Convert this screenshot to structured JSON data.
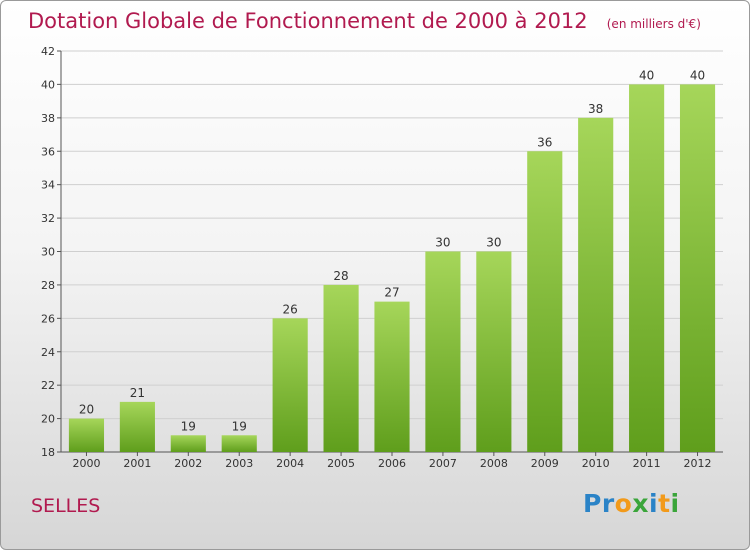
{
  "header": {
    "title": "Dotation Globale de Fonctionnement de 2000 à 2012",
    "subtitle": "(en milliers d'€)"
  },
  "town": "SELLES",
  "logo": {
    "text": "Proxiti",
    "letters": [
      {
        "ch": "P",
        "color": "#2a83c7"
      },
      {
        "ch": "r",
        "color": "#2a83c7"
      },
      {
        "ch": "o",
        "color": "#f29a1a"
      },
      {
        "ch": "x",
        "color": "#3aa53a"
      },
      {
        "ch": "i",
        "color": "#2a83c7"
      },
      {
        "ch": "t",
        "color": "#f29a1a"
      },
      {
        "ch": "i",
        "color": "#3aa53a"
      }
    ]
  },
  "colors": {
    "title": "#b11a4f",
    "bar_top": "#a6d65a",
    "bar_bottom": "#5f9e1c",
    "grid": "#cfcfcf",
    "axis_text": "#333333"
  },
  "chart_data": {
    "type": "bar",
    "title": "Dotation Globale de Fonctionnement de 2000 à 2012",
    "subtitle": "(en milliers d'€)",
    "categories": [
      "2000",
      "2001",
      "2002",
      "2003",
      "2004",
      "2005",
      "2006",
      "2007",
      "2008",
      "2009",
      "2010",
      "2011",
      "2012"
    ],
    "values": [
      20,
      21,
      19,
      19,
      26,
      28,
      27,
      30,
      30,
      36,
      38,
      40,
      40
    ],
    "ylim": [
      18,
      42
    ],
    "yticks": [
      18,
      20,
      22,
      24,
      26,
      28,
      30,
      32,
      34,
      36,
      38,
      40,
      42
    ],
    "xlabel": "",
    "ylabel": "",
    "grid": true,
    "data_labels": true
  }
}
